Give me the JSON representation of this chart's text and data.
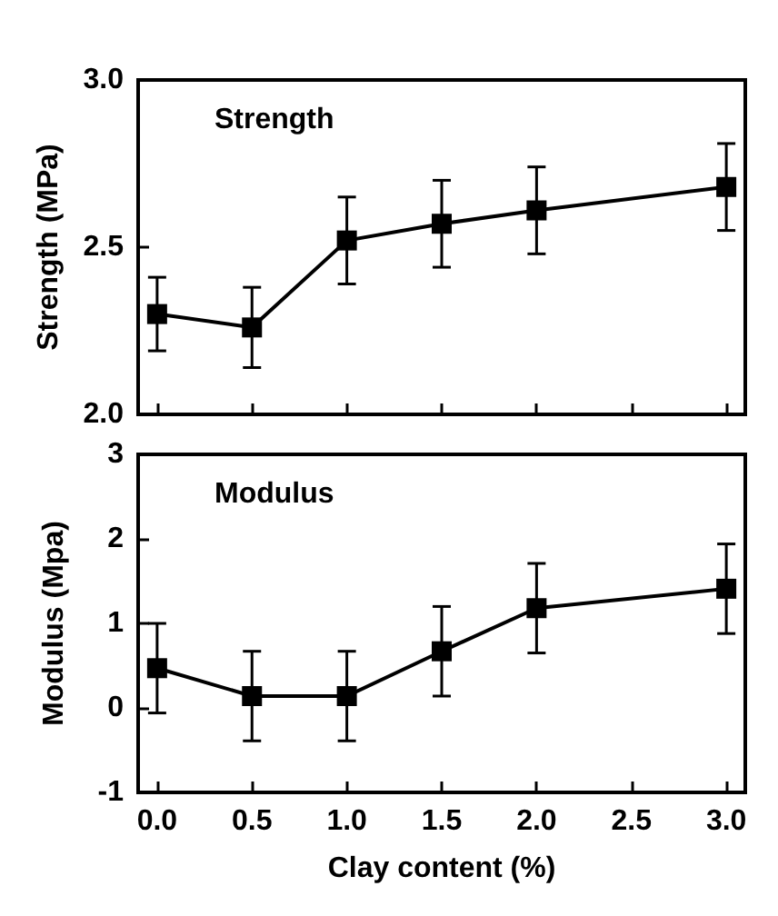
{
  "chart_data": [
    {
      "type": "line",
      "ylabel": "Strength (MPa)",
      "annotations": [
        "Strength"
      ],
      "x": [
        0,
        0.5,
        1.0,
        1.5,
        2.0,
        3.0
      ],
      "series": [
        {
          "color": "#000000",
          "values": [
            2.3,
            2.26,
            2.52,
            2.57,
            2.61,
            2.68
          ],
          "errors": [
            0.11,
            0.12,
            0.13,
            0.13,
            0.13,
            0.13
          ]
        }
      ],
      "xlim": [
        -0.1,
        3.1
      ],
      "xticks": [
        {
          "value": 0,
          "label": null
        },
        {
          "value": 0.5,
          "label": null
        },
        {
          "value": 1,
          "label": null
        },
        {
          "value": 1.5,
          "label": null
        },
        {
          "value": 2,
          "label": null
        },
        {
          "value": 2.5,
          "label": null
        },
        {
          "value": 3,
          "label": null
        }
      ],
      "ylim": [
        2.0,
        3.0
      ],
      "yticks": [
        {
          "value": 2.0,
          "label": "2.0"
        },
        {
          "value": 2.5,
          "label": "2.5"
        },
        {
          "value": 3.0,
          "label": "3.0"
        }
      ],
      "tick_labels": "y",
      "marker": "square",
      "line_style": "solid",
      "grid": false
    },
    {
      "type": "line",
      "ylabel": "Modulus (Mpa)",
      "xlabel": "Clay content (%)",
      "annotations": [
        "Modulus"
      ],
      "x": [
        0,
        0.5,
        1.0,
        1.5,
        2.0,
        3.0
      ],
      "series": [
        {
          "color": "#000000",
          "values": [
            0.47,
            0.14,
            0.14,
            0.67,
            1.18,
            1.41
          ],
          "errors": [
            0.53,
            0.53,
            0.53,
            0.53,
            0.53,
            0.53
          ]
        }
      ],
      "xlim": [
        -0.1,
        3.1
      ],
      "xticks": [
        {
          "value": 0,
          "label": "0.0"
        },
        0.5,
        {
          "value": 1,
          "label": "1.0"
        },
        1.5,
        {
          "value": 2,
          "label": "2.0"
        },
        2.5,
        {
          "value": 3,
          "label": "3.0"
        }
      ],
      "ylim": [
        -1,
        3
      ],
      "yticks": [
        -1,
        0,
        1,
        2,
        3
      ],
      "marker": "square",
      "line_style": "solid",
      "grid": false
    }
  ]
}
